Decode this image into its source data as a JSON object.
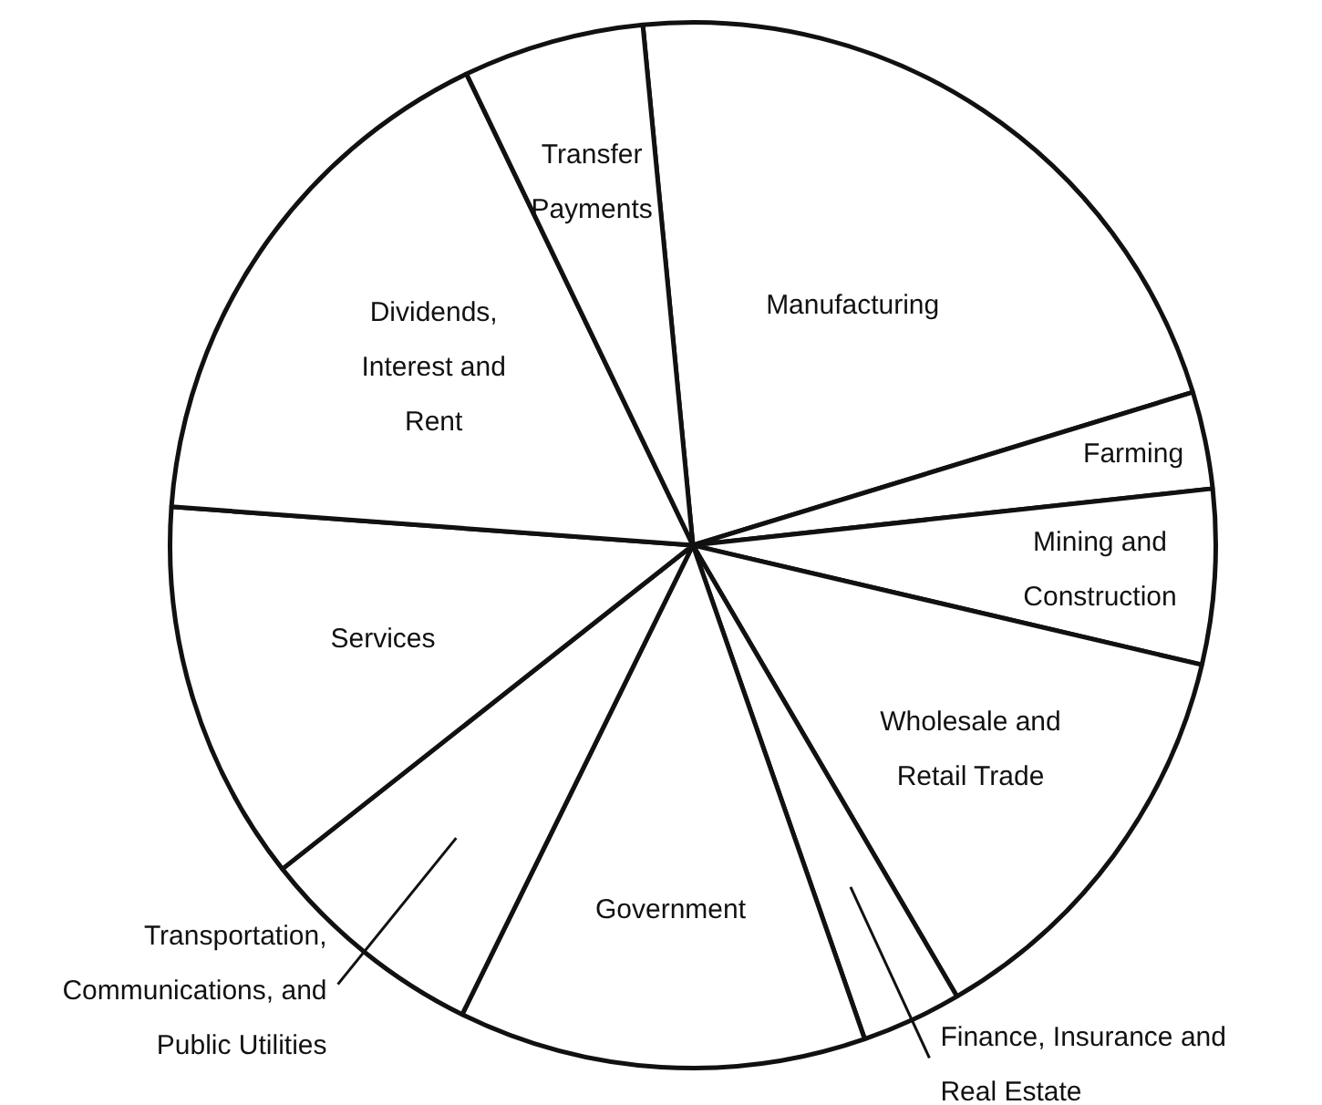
{
  "chart_data": {
    "type": "pie",
    "categories": [
      "Manufacturing",
      "Farming",
      "Mining and Construction",
      "Wholesale and Retail Trade",
      "Finance, Insurance and Real Estate",
      "Government",
      "Transportation, Communications, and Public Utilities",
      "Services",
      "Dividends, Interest and Rent",
      "Transfer Payments"
    ],
    "values": [
      21.8,
      3.0,
      5.4,
      12.9,
      3.1,
      12.6,
      7.1,
      11.8,
      16.7,
      5.6
    ],
    "colors": [
      "#ffffff",
      "#ffffff",
      "#ffffff",
      "#ffffff",
      "#ffffff",
      "#ffffff",
      "#ffffff",
      "#ffffff",
      "#ffffff",
      "#ffffff"
    ],
    "legend": false
  }
}
